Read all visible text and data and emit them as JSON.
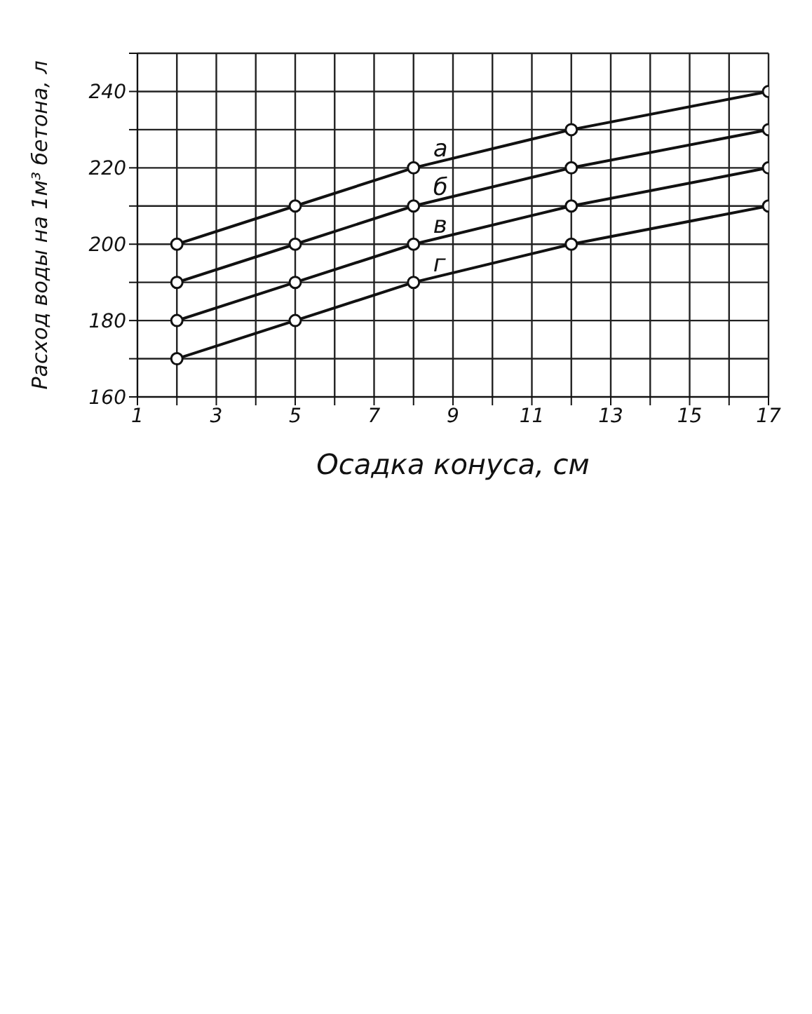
{
  "chart_data": {
    "type": "line",
    "xlabel": "Осадка конуса, см",
    "ylabel": "Расход воды на 1м³ бетона, л",
    "x": [
      2,
      5,
      8,
      12,
      17
    ],
    "series": [
      {
        "name": "а",
        "color": "#111111",
        "values": [
          200,
          210,
          220,
          230,
          240
        ]
      },
      {
        "name": "б",
        "color": "#111111",
        "values": [
          190,
          200,
          210,
          220,
          230
        ]
      },
      {
        "name": "в",
        "color": "#111111",
        "values": [
          180,
          190,
          200,
          210,
          220
        ]
      },
      {
        "name": "г",
        "color": "#111111",
        "values": [
          170,
          180,
          190,
          200,
          210
        ]
      }
    ],
    "xlim": [
      1,
      17
    ],
    "xticks": [
      1,
      {
        "value": 2,
        "label": null
      },
      3,
      {
        "value": 4,
        "label": null
      },
      5,
      {
        "value": 6,
        "label": null
      },
      7,
      {
        "value": 8,
        "label": null
      },
      9,
      {
        "value": 10,
        "label": null
      },
      11,
      {
        "value": 12,
        "label": null
      },
      13,
      {
        "value": 14,
        "label": null
      },
      15,
      {
        "value": 16,
        "label": null
      },
      17
    ],
    "ylim": [
      160,
      250
    ],
    "yticks": [
      160,
      {
        "value": 170,
        "label": null
      },
      180,
      {
        "value": 190,
        "label": null
      },
      200,
      {
        "value": 210,
        "label": null
      },
      220,
      {
        "value": 230,
        "label": null
      },
      240,
      {
        "value": 250,
        "label": null
      }
    ],
    "grid": true,
    "legend": false,
    "marker": "circle",
    "line_style": "solid"
  }
}
